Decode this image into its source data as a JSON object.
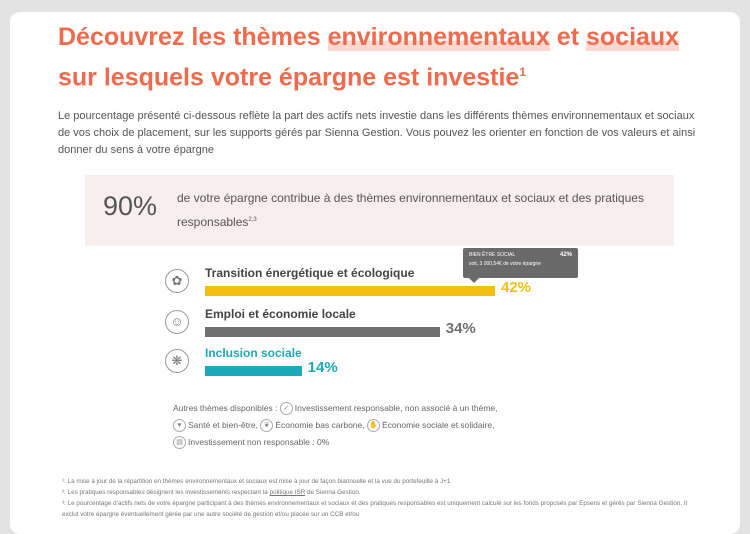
{
  "title": {
    "part1": "Découvrez les thèmes ",
    "part2": "environnementaux",
    "part3": " et ",
    "part4": "sociaux",
    "part5": " sur lesquels votre épargne est investie",
    "sup": "1"
  },
  "intro": "Le pourcentage présenté ci-dessous reflète la part des actifs nets investie dans les différents thèmes environnementaux et sociaux de vos choix de placement, sur les supports gérés par Sienna Gestion. Vous pouvez les orienter en fonction de vos valeurs et ainsi donner du sens à votre épargne",
  "summary": {
    "percent": "90%",
    "text": "de votre épargne contribue à des thèmes environnementaux et sociaux et des pratiques responsables",
    "sup": "2,3"
  },
  "tooltip": {
    "label": "BIEN ÊTRE SOCIAL",
    "percent": "42%",
    "detail": "soit, 3 000,54€ de votre épargne"
  },
  "themes": [
    {
      "name": "Transition énergétique et écologique",
      "value": 42,
      "value_label": "42%",
      "color": "#f3bf10",
      "icon": "plant-icon"
    },
    {
      "name": "Emploi et économie locale",
      "value": 34,
      "value_label": "34%",
      "color": "#707070",
      "icon": "people-icon"
    },
    {
      "name": "Inclusion sociale",
      "value": 14,
      "value_label": "14%",
      "color": "#1aa9b8",
      "icon": "network-icon"
    }
  ],
  "others": {
    "label": "Autres thèmes disponibles :",
    "items": [
      "Investissement responsable, non associé à un thème,",
      "Santé et bien-être,",
      "Économie bas carbone,",
      "Économie sociale et solidaire,",
      "Investissement non responsable : 0%"
    ]
  },
  "notes": {
    "n1": "¹: La mise à jour de la répartition en thèmes environnementaux et sociaux est mise à jour de façon biannuelle et la vue du portefeuille à J+1",
    "n2_a": "²: Les pratiques responsables désignent les investissements respectant la ",
    "n2_link": "politique ISR",
    "n2_b": " de Sienna Gestion.",
    "n3": "³: Le pourcentage d'actifs nets de votre épargne participant à des thèmes environnementaux et sociaux et des pratiques responsables est uniquement calculé sur les fonds proposés par Epsens et gérés par Sienna Gestion. Il exclut votre épargne éventuellement gérée par une autre société de gestion et/ou placée sur un CCB et/ou"
  }
}
